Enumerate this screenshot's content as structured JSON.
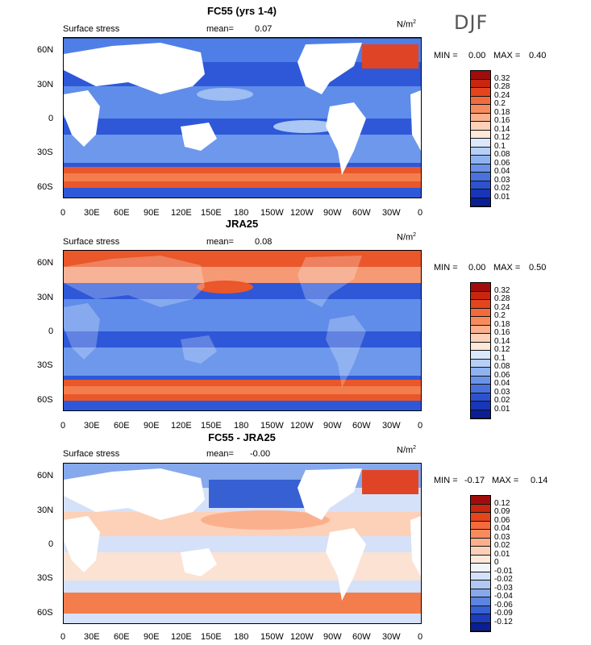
{
  "season": "DJF",
  "lon_ticks": [
    "0",
    "30E",
    "60E",
    "90E",
    "120E",
    "150E",
    "180",
    "150W",
    "120W",
    "90W",
    "60W",
    "30W",
    "0"
  ],
  "lat_ticks": [
    "60N",
    "30N",
    "0",
    "30S",
    "60S"
  ],
  "panels": [
    {
      "title": "FC55 (yrs 1-4)",
      "left_label": "Surface stress",
      "mean_label": "mean=",
      "mean_value": "0.07",
      "unit": "N/m",
      "unit_sup": "2",
      "min_label": "MIN =",
      "min_value": "0.00",
      "max_label": "MAX =",
      "max_value": "0.40",
      "colorbar": {
        "labels": [
          "0.32",
          "0.28",
          "0.24",
          "0.2",
          "0.18",
          "0.16",
          "0.14",
          "0.12",
          "0.1",
          "0.08",
          "0.06",
          "0.04",
          "0.03",
          "0.02",
          "0.01"
        ],
        "colors": [
          "#a10d0d",
          "#c8260f",
          "#e4451d",
          "#f36b3c",
          "#f88b5e",
          "#fbb08d",
          "#fcd1b8",
          "#fde8d9",
          "#dbe7fb",
          "#b6cff7",
          "#8fb3f1",
          "#6a92e8",
          "#4a72dc",
          "#2d52cf",
          "#1936b8",
          "#0a1f93"
        ]
      }
    },
    {
      "title": "JRA25",
      "left_label": "Surface stress",
      "mean_label": "mean=",
      "mean_value": "0.08",
      "unit": "N/m",
      "unit_sup": "2",
      "min_label": "MIN =",
      "min_value": "0.00",
      "max_label": "MAX =",
      "max_value": "0.50",
      "colorbar": {
        "labels": [
          "0.32",
          "0.28",
          "0.24",
          "0.2",
          "0.18",
          "0.16",
          "0.14",
          "0.12",
          "0.1",
          "0.08",
          "0.06",
          "0.04",
          "0.03",
          "0.02",
          "0.01"
        ],
        "colors": [
          "#a10d0d",
          "#c8260f",
          "#e4451d",
          "#f36b3c",
          "#f88b5e",
          "#fbb08d",
          "#fcd1b8",
          "#fde8d9",
          "#dbe7fb",
          "#b6cff7",
          "#8fb3f1",
          "#6a92e8",
          "#4a72dc",
          "#2d52cf",
          "#1936b8",
          "#0a1f93"
        ]
      }
    },
    {
      "title": "FC55 - JRA25",
      "left_label": "Surface stress",
      "mean_label": "mean=",
      "mean_value": "-0.00",
      "unit": "N/m",
      "unit_sup": "2",
      "min_label": "MIN =",
      "min_value": "-0.17",
      "max_label": "MAX =",
      "max_value": "0.14",
      "colorbar": {
        "labels": [
          "0.12",
          "0.09",
          "0.06",
          "0.04",
          "0.03",
          "0.02",
          "0.01",
          "0",
          "-0.01",
          "-0.02",
          "-0.03",
          "-0.04",
          "-0.06",
          "-0.09",
          "-0.12"
        ],
        "colors": [
          "#a10d0d",
          "#c8260f",
          "#e4451d",
          "#f36b3c",
          "#f88b5e",
          "#fbb08d",
          "#fcd1b8",
          "#fde8d9",
          "#f2f4fb",
          "#d5e1f8",
          "#b0c8f3",
          "#86a8ec",
          "#5c84e0",
          "#3760d3",
          "#1b3cbd",
          "#0a1f93"
        ]
      }
    }
  ]
}
